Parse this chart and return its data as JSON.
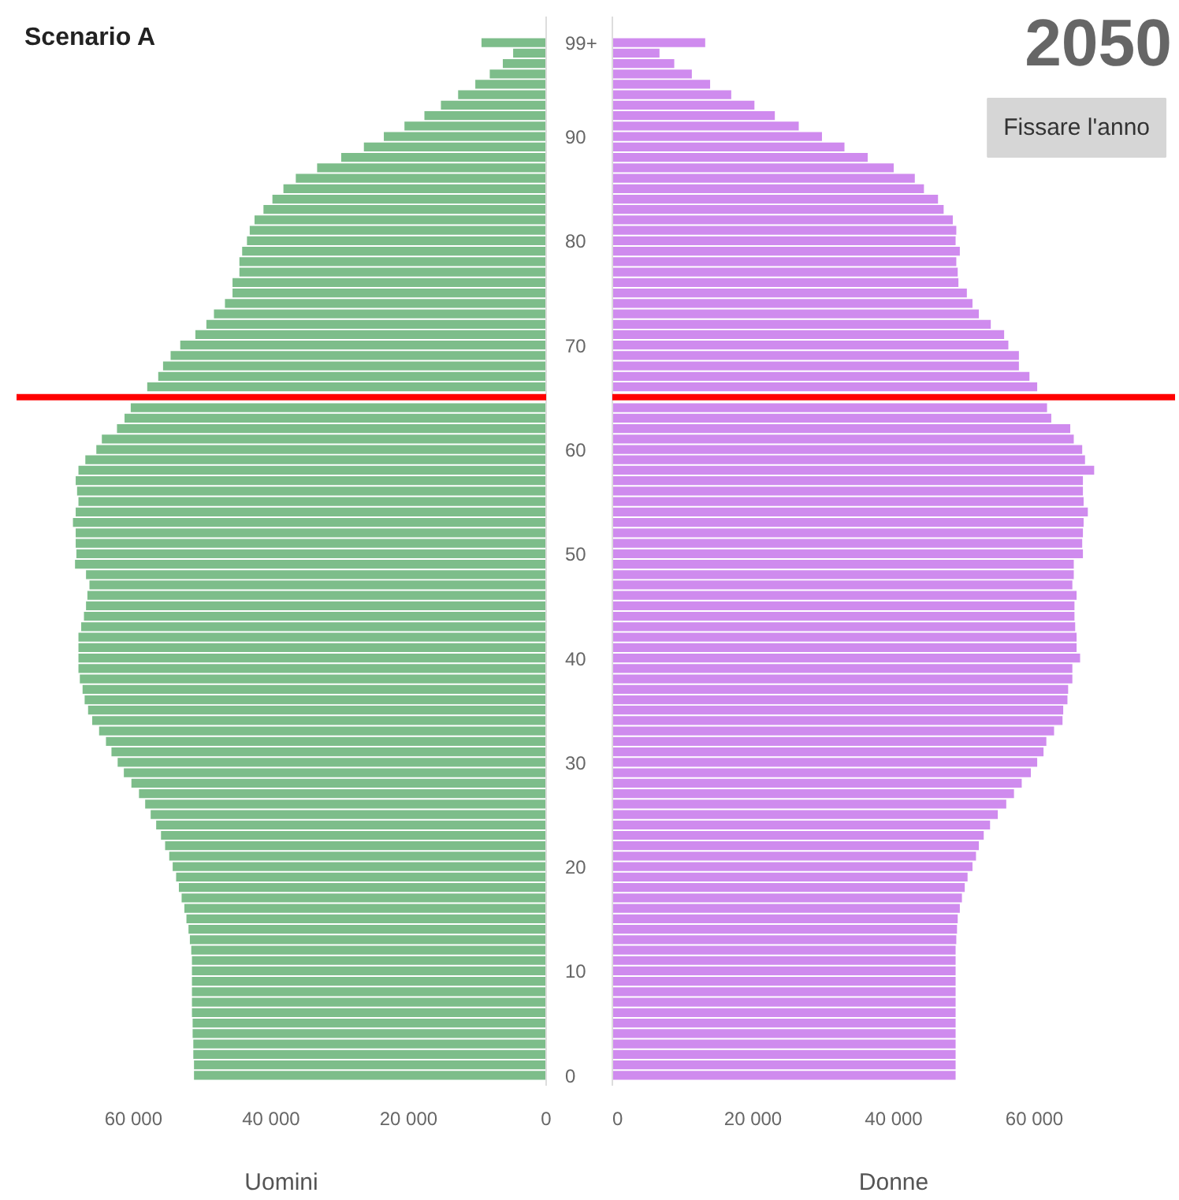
{
  "chart_data": [
    {
      "type": "bar",
      "orientation": "horizontal",
      "title": "Scenario A",
      "xlabel": "Uomini",
      "x": [
        99,
        98,
        97,
        96,
        95,
        94,
        93,
        92,
        91,
        90,
        89,
        88,
        87,
        86,
        85,
        84,
        83,
        82,
        81,
        80,
        79,
        78,
        77,
        76,
        75,
        74,
        73,
        72,
        71,
        70,
        69,
        68,
        67,
        66,
        65,
        64,
        63,
        62,
        61,
        60,
        59,
        58,
        57,
        56,
        55,
        54,
        53,
        52,
        51,
        50,
        49,
        48,
        47,
        46,
        45,
        44,
        43,
        42,
        41,
        40,
        39,
        38,
        37,
        36,
        35,
        34,
        33,
        32,
        31,
        30,
        29,
        28,
        27,
        26,
        25,
        24,
        23,
        22,
        21,
        20,
        19,
        18,
        17,
        16,
        15,
        14,
        13,
        12,
        11,
        10,
        9,
        8,
        7,
        6,
        5,
        4,
        3,
        2,
        1,
        0
      ],
      "ylim": [
        -1,
        101.5
      ],
      "yticks": [
        0,
        10,
        20,
        30,
        40,
        50,
        60,
        70,
        80,
        90,
        {
          "value": 99,
          "label": "99+"
        }
      ],
      "series": [
        {
          "color": "#7dbd8a",
          "values": [
            9400,
            4800,
            6300,
            8200,
            10300,
            12800,
            15300,
            17700,
            20600,
            23600,
            26500,
            29800,
            33300,
            36400,
            38200,
            39800,
            41100,
            42400,
            43100,
            43500,
            44200,
            44600,
            44600,
            45600,
            45600,
            46700,
            48300,
            49400,
            51000,
            53200,
            54600,
            55700,
            56400,
            58000,
            null,
            60400,
            61300,
            62400,
            64600,
            65400,
            67000,
            68000,
            68400,
            68200,
            68000,
            68400,
            68800,
            68400,
            68400,
            68300,
            68500,
            66900,
            66400,
            66700,
            66900,
            67200,
            67600,
            68000,
            68000,
            68000,
            68000,
            67800,
            67400,
            67100,
            66600,
            66000,
            65000,
            64000,
            63200,
            62300,
            61400,
            60300,
            59200,
            58300,
            57500,
            56700,
            56000,
            55400,
            54800,
            54300,
            53800,
            53400,
            53000,
            52600,
            52300,
            52000,
            51800,
            51600,
            51500,
            51500,
            51500,
            51500,
            51500,
            51500,
            51400,
            51400,
            51300,
            51300,
            51200,
            51200
          ]
        }
      ],
      "xlim": [
        77000,
        0
      ],
      "xticks": [
        {
          "value": 60000,
          "label": "60 000"
        },
        {
          "value": 40000,
          "label": "40 000"
        },
        {
          "value": 20000,
          "label": "20 000"
        },
        0
      ],
      "ref_lines": [
        {
          "axis": "y",
          "value": 65,
          "color": "#ff0000"
        }
      ]
    },
    {
      "type": "bar",
      "orientation": "horizontal",
      "xlabel": "Donne",
      "tick_labels": "x",
      "x": [
        99,
        98,
        97,
        96,
        95,
        94,
        93,
        92,
        91,
        90,
        89,
        88,
        87,
        86,
        85,
        84,
        83,
        82,
        81,
        80,
        79,
        78,
        77,
        76,
        75,
        74,
        73,
        72,
        71,
        70,
        69,
        68,
        67,
        66,
        65,
        64,
        63,
        62,
        61,
        60,
        59,
        58,
        57,
        56,
        55,
        54,
        53,
        52,
        51,
        50,
        49,
        48,
        47,
        46,
        45,
        44,
        43,
        42,
        41,
        40,
        39,
        38,
        37,
        36,
        35,
        34,
        33,
        32,
        31,
        30,
        29,
        28,
        27,
        26,
        25,
        24,
        23,
        22,
        21,
        20,
        19,
        18,
        17,
        16,
        15,
        14,
        13,
        12,
        11,
        10,
        9,
        8,
        7,
        6,
        5,
        4,
        3,
        2,
        1,
        0
      ],
      "series": [
        {
          "color": "#cf8bee",
          "values": [
            13200,
            6700,
            8800,
            11300,
            13900,
            16900,
            20200,
            23100,
            26500,
            29800,
            33000,
            36300,
            40000,
            43000,
            44300,
            46300,
            47100,
            48400,
            48900,
            48800,
            49400,
            48900,
            49100,
            49200,
            50400,
            51200,
            52100,
            53800,
            55700,
            56300,
            57800,
            57800,
            59300,
            60400,
            null,
            61800,
            62400,
            65100,
            65600,
            66800,
            67200,
            68500,
            66900,
            66900,
            67000,
            67600,
            67000,
            66900,
            66800,
            66900,
            65600,
            65600,
            65400,
            66000,
            65700,
            65700,
            65800,
            66000,
            66000,
            66500,
            65400,
            65400,
            64800,
            64700,
            64100,
            64000,
            62800,
            61700,
            61300,
            60400,
            59500,
            58200,
            57100,
            56000,
            54800,
            53700,
            52800,
            52100,
            51700,
            51200,
            50500,
            50100,
            49700,
            49400,
            49100,
            49000,
            48900,
            48800,
            48800,
            48800,
            48800,
            48800,
            48800,
            48800,
            48800,
            48800,
            48800,
            48800,
            48800,
            48800
          ]
        }
      ],
      "ylim": [
        -1,
        101.5
      ],
      "xlim": [
        0,
        80000
      ],
      "xticks": [
        0,
        {
          "value": 20000,
          "label": "20 000"
        },
        {
          "value": 40000,
          "label": "40 000"
        },
        {
          "value": 60000,
          "label": "60 000"
        }
      ],
      "ref_lines": [
        {
          "axis": "y",
          "value": 65,
          "color": "#ff0000"
        }
      ],
      "annotations": [
        "2050",
        "Fissare l'anno"
      ]
    }
  ]
}
